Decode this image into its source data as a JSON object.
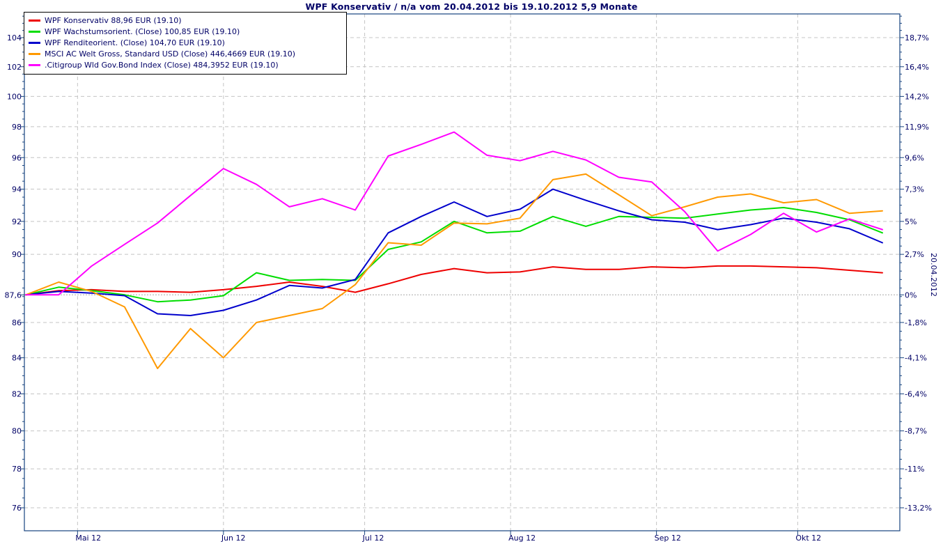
{
  "title": "WPF Konservativ / n/a vom 20.04.2012 bis 19.10.2012 5,9 Monate",
  "right_date_label": "20.04.2012",
  "legend": [
    {
      "label": "WPF Konservativ 88,96 EUR (19.10)",
      "color": "#ee0000"
    },
    {
      "label": "WPF Wachstumsorient. (Close) 100,85 EUR (19.10)",
      "color": "#00dd00"
    },
    {
      "label": "WPF Renditeorient. (Close) 104,70 EUR (19.10)",
      "color": "#0000cc"
    },
    {
      "label": "MSCI AC Welt Gross, Standard USD (Close) 446,4669 EUR (19.10)",
      "color": "#ff9900"
    },
    {
      "label": ".Citigroup Wld Gov.Bond Index (Close) 484,3952 EUR (19.10)",
      "color": "#ff00ff"
    }
  ],
  "chart_data": {
    "type": "line",
    "title": "WPF Konservativ / n/a vom 20.04.2012 bis 19.10.2012 5,9 Monate",
    "note": "All series rebased to 87.6 EUR = 0% at 20.04.2012; left axis = price of WPF Konservativ (log scale), right axis = percent change",
    "x_range_days": 182,
    "x_unit": "days since 20.04.2012, weekly closes",
    "x_days": [
      0,
      7,
      14,
      21,
      28,
      35,
      42,
      49,
      56,
      63,
      70,
      77,
      84,
      91,
      98,
      105,
      112,
      119,
      126,
      133,
      140,
      147,
      154,
      161,
      168,
      175,
      182
    ],
    "month_gridlines": {
      "days": [
        11,
        42,
        72,
        103,
        134,
        164
      ],
      "labels": [
        "Mai 12",
        "Jun 12",
        "Jul 12",
        "Aug 12",
        "Sep 12",
        "Okt 12"
      ]
    },
    "y_axis": {
      "scale": "log",
      "gridline_prices": [
        104,
        102,
        100,
        98,
        96,
        94,
        92,
        90,
        87.6,
        86,
        84,
        82,
        80,
        78,
        76
      ],
      "left_labels": [
        "104",
        "102",
        "100",
        "98",
        "96",
        "94",
        "92",
        "90",
        "87,6",
        "86",
        "84",
        "82",
        "80",
        "78",
        "76"
      ],
      "right_labels": [
        "18,7%",
        "16,4%",
        "14,2%",
        "11,9%",
        "9,6%",
        "7,3%",
        "5%",
        "2,7%",
        "0%",
        "-1,8%",
        "-4,1%",
        "-6,4%",
        "-8,7%",
        "-11%",
        "-13,2%"
      ],
      "baseline_price": 87.6
    },
    "series": [
      {
        "name": "WPF Konservativ",
        "color": "#ee0000",
        "values": [
          87.6,
          87.85,
          87.9,
          87.8,
          87.8,
          87.75,
          87.9,
          88.1,
          88.35,
          88.1,
          87.75,
          88.25,
          88.8,
          89.15,
          88.9,
          88.95,
          89.25,
          89.1,
          89.1,
          89.25,
          89.2,
          89.3,
          89.3,
          89.25,
          89.2,
          89.05,
          88.9
        ]
      },
      {
        "name": "WPF Wachstumsorient. (Close)",
        "color": "#00dd00",
        "values": [
          87.6,
          88.05,
          87.85,
          87.6,
          87.2,
          87.3,
          87.55,
          88.9,
          88.45,
          88.5,
          88.45,
          90.3,
          90.75,
          92.0,
          91.3,
          91.4,
          92.3,
          91.7,
          92.3,
          92.25,
          92.2,
          92.45,
          92.7,
          92.85,
          92.55,
          92.1,
          91.3
        ]
      },
      {
        "name": "WPF Renditeorient. (Close)",
        "color": "#0000cc",
        "values": [
          87.6,
          87.8,
          87.7,
          87.55,
          86.5,
          86.4,
          86.7,
          87.3,
          88.15,
          88.0,
          88.5,
          91.3,
          92.3,
          93.2,
          92.3,
          92.75,
          94.0,
          93.3,
          92.65,
          92.1,
          91.95,
          91.5,
          91.8,
          92.2,
          91.95,
          91.55,
          90.7
        ]
      },
      {
        "name": "MSCI AC Welt Gross, Standard USD (Close)",
        "color": "#ff9900",
        "values": [
          87.6,
          88.35,
          87.8,
          86.9,
          83.4,
          85.65,
          84.0,
          86.0,
          86.4,
          86.8,
          88.2,
          90.7,
          90.55,
          91.9,
          91.85,
          92.2,
          94.6,
          94.95,
          93.65,
          92.35,
          92.9,
          93.5,
          93.7,
          93.15,
          93.35,
          92.5,
          92.65
        ]
      },
      {
        "name": ".Citigroup Wld Gov.Bond Index (Close)",
        "color": "#ff00ff",
        "values": [
          87.6,
          87.6,
          89.3,
          90.6,
          91.9,
          93.6,
          95.3,
          94.3,
          92.9,
          93.4,
          92.7,
          96.1,
          96.85,
          97.65,
          96.15,
          95.8,
          96.4,
          95.85,
          94.75,
          94.45,
          92.6,
          90.2,
          91.2,
          92.5,
          91.35,
          92.15,
          91.5
        ]
      }
    ],
    "colors": {
      "axis": "#16427e",
      "text": "#000066",
      "gridline": "#c4c4c4",
      "zeroline": "#a8a8a8"
    }
  }
}
